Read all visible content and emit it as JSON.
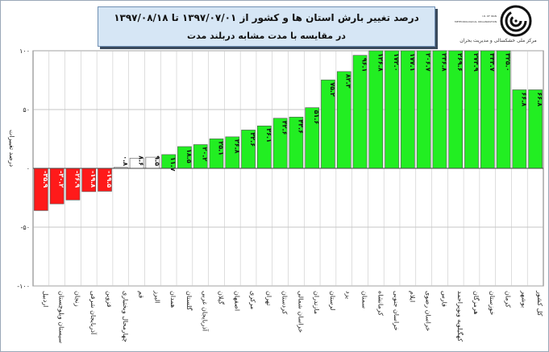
{
  "header": {
    "title_line1": "درصد تغییر بارش استان ها و کشور از   ۱۳۹۷/۰۷/۰۱ تا ۱۳۹۷/۰۸/۱۸",
    "title_line2": "در مقایسه با مدت مشابه دربلند مدت"
  },
  "logo": {
    "caption": "مرکز ملی خشکسالی و مدیریت بحران",
    "tiny_line1": "I.R. OF IRAN",
    "tiny_line2": "METEOROLOGICAL ORGANIZATION"
  },
  "colors": {
    "negative": "#ff1a1a",
    "neutral": "#ffffff",
    "positive": "#22ee22",
    "frame_bg": "#d6e6f5"
  },
  "chart_data": {
    "type": "bar",
    "title": "درصد تغییر بارش استان ها و کشور از   ۱۳۹۷/۰۷/۰۱ تا ۱۳۹۷/۰۸/۱۸",
    "subtitle": "در مقایسه با مدت مشابه دربلند مدت",
    "ylabel": "درصد تغییرات",
    "xlabel": "",
    "ylim": [
      -100,
      100
    ],
    "ytick_values": [
      100,
      50,
      0,
      -50,
      -100
    ],
    "ytick_labels": [
      "۱۰۰",
      "۵۰",
      "۰",
      "-۵۰",
      "-۱۰۰"
    ],
    "grid": true,
    "categories": [
      "اردبیل",
      "سیستان وبلوچستان",
      "زنجان",
      "آذربایجان شرقی",
      "قزوین",
      "چهارمحال وبختیاری",
      "قم",
      "البرز",
      "همدان",
      "گلستان",
      "آذربایجان غربی",
      "گیلان",
      "اصفهان",
      "مرکزی",
      "تهران",
      "کردستان",
      "خراسان شمالی",
      "مازندران",
      "لرستان",
      "یزد",
      "سمنان",
      "کرمانشاه",
      "خراسان جنوبی",
      "ایلام",
      "خراسان رضوی",
      "فارس",
      "کهگیلویه وبویراحمد",
      "هرمزگان",
      "خوزستان",
      "کرمان",
      "بوشهر",
      "کل کشور"
    ],
    "values": [
      -35.9,
      -30.2,
      -26.9,
      -19.8,
      -19.5,
      0.8,
      8.6,
      9.5,
      11.7,
      18.5,
      20.2,
      25.1,
      26.8,
      32.6,
      36.1,
      42.6,
      43.6,
      51.6,
      75.2,
      82.3,
      96.1,
      126.8,
      172.0,
      177.1,
      206.7,
      236.8,
      269.6,
      273.9,
      333.7,
      325.0,
      66.8,
      66.8
    ],
    "value_labels": [
      "-۳۵.۹",
      "-۳۰.۲",
      "-۲۶.۹",
      "-۱۹.۸",
      "-۱۹.۵",
      "۰.۸",
      "۸.۶",
      "۹.۵",
      "۱۱.۷",
      "۱۸.۵",
      "۲۰.۲",
      "۲۵.۱",
      "۲۶.۸",
      "۳۲.۶",
      "۳۶.۱",
      "۴۲.۶",
      "۴۳.۶",
      "۵۱.۶",
      "۷۵.۲",
      "۸۲.۳",
      "۹۶.۱",
      "۱۲۶.۸",
      "۱۷۲.۰",
      "۱۷۷.۱",
      "۲۰۶.۷",
      "۲۳۶.۸",
      "۲۶۹.۶",
      "۲۷۳.۹",
      "۳۳۳.۷",
      "۳۲۵.۰",
      "۶۶.۸",
      "۶۶.۸"
    ]
  }
}
